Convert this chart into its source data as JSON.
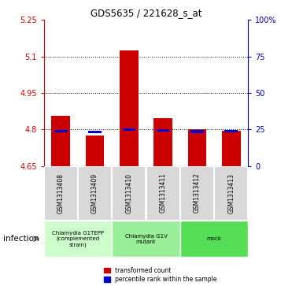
{
  "title": "GDS5635 / 221628_s_at",
  "samples": [
    "GSM1313408",
    "GSM1313409",
    "GSM1313410",
    "GSM1313411",
    "GSM1313412",
    "GSM1313413"
  ],
  "transformed_counts": [
    4.855,
    4.775,
    5.125,
    4.845,
    4.802,
    4.795
  ],
  "percentile_ranks": [
    23.8,
    23.2,
    24.8,
    24.3,
    23.5,
    23.9
  ],
  "ylim_left": [
    4.65,
    5.25
  ],
  "ylim_right": [
    0,
    100
  ],
  "yticks_left": [
    4.65,
    4.8,
    4.95,
    5.1,
    5.25
  ],
  "yticks_right": [
    0,
    25,
    50,
    75,
    100
  ],
  "ytick_labels_left": [
    "4.65",
    "4.8",
    "4.95",
    "5.1",
    "5.25"
  ],
  "ytick_labels_right": [
    "0",
    "25",
    "50",
    "75",
    "100%"
  ],
  "baseline": 4.65,
  "groups": [
    {
      "label": "Chlamydia G1TEPP\n(complemented\nstrain)",
      "indices": [
        0,
        1
      ],
      "color": "#ccffcc"
    },
    {
      "label": "Chlamydia G1V\nmutant",
      "indices": [
        2,
        3
      ],
      "color": "#99ee99"
    },
    {
      "label": "mock",
      "indices": [
        4,
        5
      ],
      "color": "#55dd55"
    }
  ],
  "bar_color_red": "#cc0000",
  "bar_color_blue": "#0000cc",
  "bar_width": 0.55,
  "grid_color": "black",
  "left_axis_color": "#cc0000",
  "right_axis_color": "#0000bb",
  "sample_box_color": "#d8d8d8",
  "infection_label": "infection",
  "legend_red_label": "transformed count",
  "legend_blue_label": "percentile rank within the sample"
}
